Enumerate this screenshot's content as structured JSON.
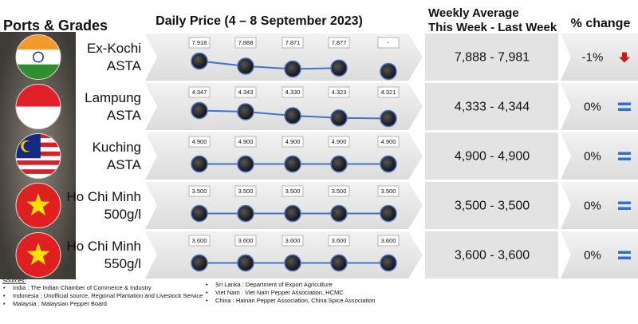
{
  "header": {
    "ports": "Ports & Grades",
    "daily": "Daily Price (4 – 8 September 2023)",
    "weekly_1": "Weekly Average",
    "weekly_2": "This Week - Last Week",
    "change": "% change"
  },
  "rows": [
    {
      "port": "Ex-Kochi",
      "grade": "ASTA",
      "values": [
        7918,
        7888,
        7871,
        7877,
        null
      ],
      "value_labels": [
        "7.918",
        "7.888",
        "7.871",
        "7.877",
        "-"
      ],
      "weekly": "7,888 - 7,981",
      "change": "-1%"
    },
    {
      "port": "Lampung",
      "grade": "ASTA",
      "values": [
        4347,
        4343,
        4330,
        4323,
        4321
      ],
      "value_labels": [
        "4.347",
        "4.343",
        "4.330",
        "4.323",
        "4.321"
      ],
      "weekly": "4,333 - 4,344",
      "change": "0%"
    },
    {
      "port": "Kuching",
      "grade": "ASTA",
      "values": [
        4900,
        4900,
        4900,
        4900,
        4900
      ],
      "value_labels": [
        "4.900",
        "4.900",
        "4.900",
        "4.900",
        "4.900"
      ],
      "weekly": "4,900 - 4,900",
      "change": "0%"
    },
    {
      "port": "Ho Chi Minh",
      "grade": "500g/l",
      "values": [
        3500,
        3500,
        3500,
        3500,
        3500
      ],
      "value_labels": [
        "3.500",
        "3.500",
        "3.500",
        "3.500",
        "3.500"
      ],
      "weekly": "3,500 - 3,500",
      "change": "0%"
    },
    {
      "port": "Ho Chi Minh",
      "grade": "550g/l",
      "values": [
        3600,
        3600,
        3600,
        3600,
        3600
      ],
      "value_labels": [
        "3.600",
        "3.600",
        "3.600",
        "3.600",
        "3.600"
      ],
      "weekly": "3,600 - 3,600",
      "change": "0%"
    }
  ],
  "sources": {
    "title": "Sources:",
    "left": [
      "India : The Indian Chamber of Commerce & Industry",
      "Indonesia : Unofficial source, Regional Plantation and Livestock Service",
      "Malaysia : Malaysian Pepper Board"
    ],
    "right": [
      "Sri Lanka : Department of Export Agriculture",
      "Viet Nam : Viet Nam Pepper Association, HCMC",
      "China : Hainan Pepper Association, China Spice Association"
    ]
  }
}
